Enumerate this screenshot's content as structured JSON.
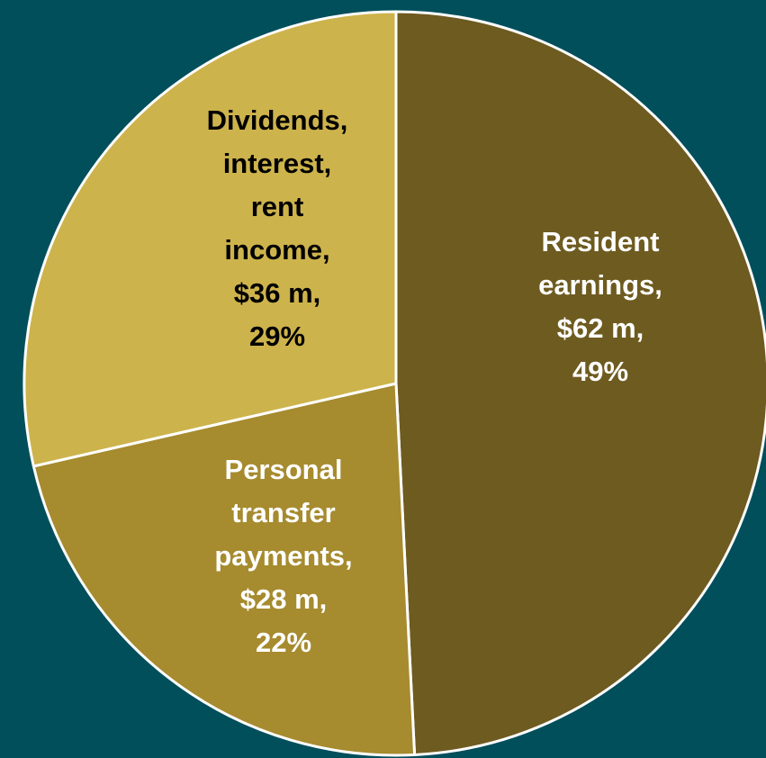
{
  "chart_data": {
    "type": "pie",
    "background_color": "#004f5b",
    "slice_border_color": "#ffffff",
    "units": "$ m",
    "slices": [
      {
        "category": "Resident earnings",
        "value": 62,
        "percent": 49,
        "color": "#6e5b20",
        "label_color": "#ffffff",
        "label_lines": [
          "Resident",
          "earnings,",
          "$62 m,",
          "49%"
        ]
      },
      {
        "category": "Personal transfer payments",
        "value": 28,
        "percent": 22,
        "color": "#a68b2f",
        "label_color": "#ffffff",
        "label_lines": [
          "Personal",
          "transfer",
          "payments,",
          "$28 m,",
          "22%"
        ]
      },
      {
        "category": "Dividends, interest, rent income",
        "value": 36,
        "percent": 29,
        "color": "#cdb34c",
        "label_color": "#000000",
        "label_lines": [
          "Dividends,",
          "interest,",
          "rent",
          "income,",
          "$36 m,",
          "29%"
        ]
      }
    ]
  }
}
